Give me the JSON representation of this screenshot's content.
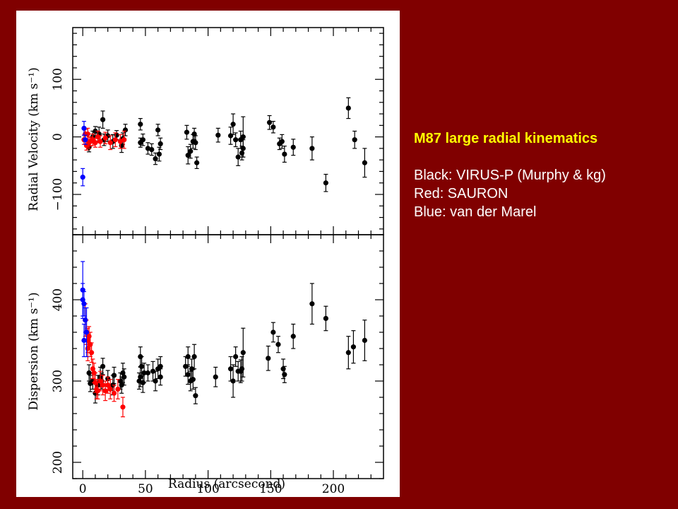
{
  "caption": {
    "title": "M87 large radial kinematics",
    "lines": [
      "Black: VIRUS-P (Murphy & kg)",
      "Red: SAURON",
      "Blue: van der Marel"
    ]
  },
  "colors": {
    "background": "#800000",
    "title": "#ffff00",
    "text": "#ffffff",
    "black_series": "#000000",
    "red_series": "#ff0000",
    "blue_series": "#0000ff"
  },
  "chart_data": [
    {
      "type": "scatter",
      "ylabel": "Radial Velocity (km s⁻¹)",
      "xlabel": "",
      "xlim": [
        -8,
        240
      ],
      "ylim": [
        -170,
        190
      ],
      "yticks": [
        "−100",
        "0",
        "100"
      ],
      "series": [
        {
          "name": "Black",
          "color": "#000000",
          "points": [
            [
              5,
              -18,
              8
            ],
            [
              8,
              0,
              10
            ],
            [
              10,
              10,
              8
            ],
            [
              13,
              5,
              12
            ],
            [
              16,
              30,
              15
            ],
            [
              17,
              -5,
              10
            ],
            [
              20,
              2,
              10
            ],
            [
              24,
              -8,
              12
            ],
            [
              27,
              3,
              8
            ],
            [
              31,
              -15,
              12
            ],
            [
              32,
              -3,
              10
            ],
            [
              34,
              12,
              10
            ],
            [
              46,
              22,
              10
            ],
            [
              46,
              -10,
              8
            ],
            [
              48,
              -5,
              10
            ],
            [
              52,
              -20,
              10
            ],
            [
              55,
              -22,
              10
            ],
            [
              58,
              -38,
              10
            ],
            [
              60,
              12,
              10
            ],
            [
              61,
              -30,
              12
            ],
            [
              62,
              -12,
              10
            ],
            [
              83,
              8,
              12
            ],
            [
              84,
              -32,
              15
            ],
            [
              86,
              -25,
              12
            ],
            [
              88,
              -8,
              12
            ],
            [
              89,
              5,
              10
            ],
            [
              90,
              -10,
              12
            ],
            [
              91,
              -45,
              10
            ],
            [
              108,
              3,
              12
            ],
            [
              118,
              2,
              15
            ],
            [
              120,
              22,
              18
            ],
            [
              122,
              -5,
              12
            ],
            [
              124,
              -35,
              15
            ],
            [
              126,
              -5,
              15
            ],
            [
              127,
              -28,
              12
            ],
            [
              128,
              -20,
              15
            ],
            [
              128,
              0,
              35
            ],
            [
              149,
              25,
              12
            ],
            [
              152,
              17,
              10
            ],
            [
              157,
              -12,
              10
            ],
            [
              159,
              -8,
              12
            ],
            [
              161,
              -30,
              14
            ],
            [
              168,
              -18,
              14
            ],
            [
              183,
              -20,
              20
            ],
            [
              194,
              -80,
              15
            ],
            [
              212,
              50,
              18
            ],
            [
              217,
              -5,
              15
            ],
            [
              225,
              -45,
              25
            ]
          ]
        },
        {
          "name": "Red",
          "color": "#ff0000",
          "points": [
            [
              1,
              -5,
              8
            ],
            [
              2,
              5,
              8
            ],
            [
              3,
              -15,
              8
            ],
            [
              4,
              5,
              10
            ],
            [
              5,
              -10,
              10
            ],
            [
              6,
              -8,
              8
            ],
            [
              8,
              -5,
              10
            ],
            [
              10,
              -10,
              8
            ],
            [
              12,
              0,
              10
            ],
            [
              14,
              -8,
              10
            ],
            [
              18,
              -2,
              10
            ],
            [
              22,
              -10,
              12
            ],
            [
              26,
              -5,
              12
            ],
            [
              30,
              -8,
              12
            ],
            [
              33,
              -5,
              15
            ]
          ]
        },
        {
          "name": "Blue",
          "color": "#0000ff",
          "points": [
            [
              0,
              -70,
              15
            ],
            [
              1,
              15,
              12
            ],
            [
              2,
              -5,
              8
            ]
          ]
        }
      ]
    },
    {
      "type": "scatter",
      "ylabel": "Dispersion (km s⁻¹)",
      "xlabel": "Radius (arcsecond)",
      "xlim": [
        -8,
        240
      ],
      "ylim": [
        180,
        480
      ],
      "xticks": [
        "0",
        "50",
        "100",
        "150",
        "200"
      ],
      "yticks": [
        "200",
        "300",
        "400"
      ],
      "series": [
        {
          "name": "Black",
          "color": "#000000",
          "points": [
            [
              5,
              310,
              10
            ],
            [
              6,
              297,
              10
            ],
            [
              8,
              300,
              10
            ],
            [
              10,
              285,
              12
            ],
            [
              12,
              295,
              12
            ],
            [
              14,
              305,
              12
            ],
            [
              15,
              300,
              10
            ],
            [
              16,
              318,
              10
            ],
            [
              20,
              303,
              10
            ],
            [
              24,
              295,
              12
            ],
            [
              25,
              307,
              10
            ],
            [
              30,
              300,
              10
            ],
            [
              31,
              295,
              10
            ],
            [
              32,
              310,
              12
            ],
            [
              33,
              305,
              10
            ],
            [
              45,
              300,
              10
            ],
            [
              46,
              305,
              12
            ],
            [
              46,
              330,
              12
            ],
            [
              47,
              318,
              12
            ],
            [
              48,
              298,
              12
            ],
            [
              49,
              310,
              12
            ],
            [
              52,
              310,
              10
            ],
            [
              56,
              312,
              12
            ],
            [
              58,
              300,
              12
            ],
            [
              60,
              315,
              12
            ],
            [
              62,
              318,
              12
            ],
            [
              62,
              305,
              10
            ],
            [
              82,
              318,
              12
            ],
            [
              84,
              330,
              12
            ],
            [
              84,
              308,
              12
            ],
            [
              86,
              300,
              12
            ],
            [
              87,
              315,
              12
            ],
            [
              88,
              302,
              12
            ],
            [
              89,
              330,
              15
            ],
            [
              90,
              282,
              10
            ],
            [
              106,
              305,
              12
            ],
            [
              118,
              315,
              15
            ],
            [
              120,
              300,
              20
            ],
            [
              122,
              330,
              12
            ],
            [
              124,
              312,
              12
            ],
            [
              126,
              312,
              14
            ],
            [
              127,
              315,
              15
            ],
            [
              128,
              335,
              30
            ],
            [
              148,
              328,
              15
            ],
            [
              152,
              360,
              12
            ],
            [
              156,
              345,
              10
            ],
            [
              160,
              315,
              12
            ],
            [
              161,
              308,
              10
            ],
            [
              168,
              355,
              15
            ],
            [
              183,
              395,
              25
            ],
            [
              194,
              377,
              15
            ],
            [
              212,
              335,
              20
            ],
            [
              216,
              342,
              20
            ],
            [
              225,
              350,
              25
            ]
          ]
        },
        {
          "name": "Red",
          "color": "#ff0000",
          "points": [
            [
              2,
              375,
              20
            ],
            [
              3,
              360,
              15
            ],
            [
              4,
              350,
              15
            ],
            [
              4,
              340,
              15
            ],
            [
              5,
              355,
              12
            ],
            [
              6,
              345,
              15
            ],
            [
              7,
              335,
              12
            ],
            [
              8,
              315,
              12
            ],
            [
              9,
              310,
              12
            ],
            [
              10,
              298,
              12
            ],
            [
              11,
              290,
              12
            ],
            [
              12,
              288,
              10
            ],
            [
              14,
              300,
              12
            ],
            [
              16,
              295,
              12
            ],
            [
              18,
              288,
              12
            ],
            [
              20,
              295,
              10
            ],
            [
              22,
              290,
              12
            ],
            [
              25,
              285,
              10
            ],
            [
              28,
              290,
              12
            ],
            [
              32,
              268,
              12
            ]
          ]
        },
        {
          "name": "Blue",
          "color": "#0000ff",
          "points": [
            [
              0,
              412,
              35
            ],
            [
              0,
              400,
              20
            ],
            [
              1,
              395,
              15
            ],
            [
              1,
              350,
              20
            ],
            [
              2,
              375,
              15
            ],
            [
              3,
              360,
              30
            ]
          ]
        }
      ]
    }
  ]
}
